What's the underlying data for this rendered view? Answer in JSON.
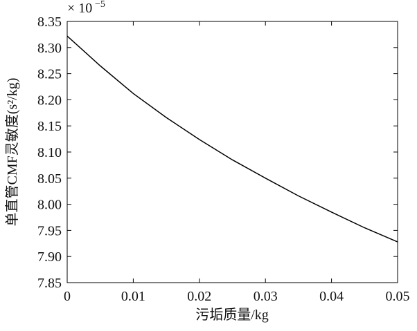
{
  "chart_data": {
    "type": "line",
    "xlabel": "污垢质量/kg",
    "ylabel": "单直管CMF灵敏度(s²/kg)",
    "multiplier": "× 10",
    "multiplier_exp": "−5",
    "x": [
      0,
      0.005,
      0.01,
      0.015,
      0.02,
      0.025,
      0.03,
      0.035,
      0.04,
      0.045,
      0.05
    ],
    "values": [
      8.322,
      8.265,
      8.212,
      8.166,
      8.124,
      8.085,
      8.05,
      8.016,
      7.985,
      7.955,
      7.928
    ],
    "color": "#000000",
    "xlim": [
      0,
      0.05
    ],
    "xticks": [
      0,
      0.01,
      0.02,
      0.03,
      0.04,
      0.05
    ],
    "ylim": [
      7.85,
      8.35
    ],
    "yticks": [
      7.85,
      {
        "value": 7.9,
        "label": "7.90"
      },
      7.95,
      {
        "value": 8,
        "label": "8.00"
      },
      8.05,
      {
        "value": 8.1,
        "label": "8.10"
      },
      8.15,
      {
        "value": 8.2,
        "label": "8.20"
      },
      8.25,
      {
        "value": 8.3,
        "label": "8.30"
      },
      8.35
    ],
    "grid": false
  }
}
